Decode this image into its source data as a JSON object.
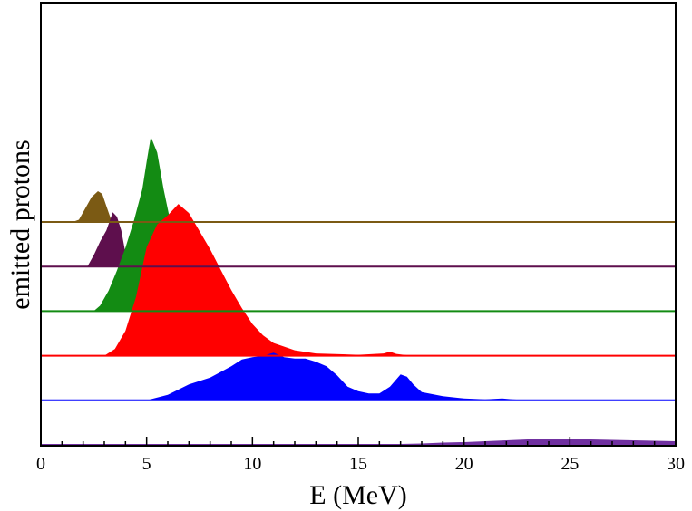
{
  "chart_data": {
    "type": "area",
    "xlabel": "E (MeV)",
    "ylabel": "emitted protons",
    "xlim": [
      0,
      30
    ],
    "x_ticks": [
      0,
      5,
      10,
      15,
      20,
      25,
      30
    ],
    "x_tick_labels": [
      "0",
      "5",
      "10",
      "15",
      "20",
      "25",
      "30"
    ],
    "grid": false,
    "legend": "none",
    "series": [
      {
        "color": "#7b5a14",
        "baseline_level": 5,
        "points": [
          [
            0,
            0
          ],
          [
            1.5,
            0
          ],
          [
            1.8,
            0.05
          ],
          [
            2.1,
            0.3
          ],
          [
            2.4,
            0.55
          ],
          [
            2.7,
            0.68
          ],
          [
            2.9,
            0.62
          ],
          [
            3.1,
            0.35
          ],
          [
            3.3,
            0.08
          ],
          [
            3.5,
            0
          ],
          [
            30,
            0
          ]
        ]
      },
      {
        "color": "#5e0f4d",
        "baseline_level": 4,
        "points": [
          [
            0,
            0
          ],
          [
            2.2,
            0
          ],
          [
            2.5,
            0.25
          ],
          [
            2.8,
            0.55
          ],
          [
            3.1,
            0.8
          ],
          [
            3.4,
            1.2
          ],
          [
            3.6,
            1.1
          ],
          [
            3.8,
            0.8
          ],
          [
            4.0,
            0.3
          ],
          [
            4.2,
            0.05
          ],
          [
            4.4,
            0
          ],
          [
            30,
            0
          ]
        ]
      },
      {
        "color": "#138b13",
        "baseline_level": 3,
        "points": [
          [
            0,
            0
          ],
          [
            2.5,
            0
          ],
          [
            2.8,
            0.12
          ],
          [
            3.2,
            0.45
          ],
          [
            3.6,
            0.9
          ],
          [
            4.0,
            1.4
          ],
          [
            4.4,
            2.0
          ],
          [
            4.8,
            2.7
          ],
          [
            5.0,
            3.3
          ],
          [
            5.2,
            3.85
          ],
          [
            5.5,
            3.5
          ],
          [
            5.8,
            2.7
          ],
          [
            6.2,
            1.8
          ],
          [
            6.6,
            0.8
          ],
          [
            7.0,
            0.2
          ],
          [
            7.4,
            0
          ],
          [
            30,
            0
          ]
        ]
      },
      {
        "color": "#ff0000",
        "baseline_level": 2,
        "points": [
          [
            0,
            0
          ],
          [
            3.0,
            0
          ],
          [
            3.5,
            0.15
          ],
          [
            4.0,
            0.55
          ],
          [
            4.5,
            1.3
          ],
          [
            5.0,
            2.4
          ],
          [
            5.5,
            2.9
          ],
          [
            6.0,
            3.1
          ],
          [
            6.5,
            3.35
          ],
          [
            7.0,
            3.15
          ],
          [
            7.5,
            2.75
          ],
          [
            8.0,
            2.35
          ],
          [
            8.5,
            1.9
          ],
          [
            9.0,
            1.45
          ],
          [
            9.5,
            1.05
          ],
          [
            10,
            0.7
          ],
          [
            10.5,
            0.45
          ],
          [
            11,
            0.28
          ],
          [
            12,
            0.12
          ],
          [
            13,
            0.05
          ],
          [
            15,
            0.02
          ],
          [
            16.2,
            0.05
          ],
          [
            16.5,
            0.09
          ],
          [
            16.8,
            0.04
          ],
          [
            17.5,
            0
          ],
          [
            30,
            0
          ]
        ]
      },
      {
        "color": "#0000ff",
        "baseline_level": 1,
        "points": [
          [
            0,
            0
          ],
          [
            5.0,
            0
          ],
          [
            6.0,
            0.12
          ],
          [
            7.0,
            0.35
          ],
          [
            8.0,
            0.5
          ],
          [
            9.0,
            0.75
          ],
          [
            9.5,
            0.9
          ],
          [
            10,
            0.95
          ],
          [
            10.5,
            0.98
          ],
          [
            11,
            1.05
          ],
          [
            11.5,
            0.95
          ],
          [
            12,
            0.92
          ],
          [
            12.5,
            0.92
          ],
          [
            13,
            0.85
          ],
          [
            13.5,
            0.75
          ],
          [
            14,
            0.55
          ],
          [
            14.5,
            0.3
          ],
          [
            15,
            0.2
          ],
          [
            15.5,
            0.15
          ],
          [
            16,
            0.15
          ],
          [
            16.5,
            0.3
          ],
          [
            17,
            0.57
          ],
          [
            17.3,
            0.52
          ],
          [
            17.6,
            0.35
          ],
          [
            18,
            0.18
          ],
          [
            19,
            0.09
          ],
          [
            20,
            0.04
          ],
          [
            21,
            0.02
          ],
          [
            21.8,
            0.04
          ],
          [
            22.3,
            0.02
          ],
          [
            23,
            0
          ],
          [
            30,
            0
          ]
        ]
      },
      {
        "color": "#7030a0",
        "baseline_level": 0,
        "points": [
          [
            0,
            0
          ],
          [
            15.5,
            0
          ],
          [
            17,
            0.02
          ],
          [
            18,
            0.03
          ],
          [
            19,
            0.05
          ],
          [
            20,
            0.06
          ],
          [
            21,
            0.08
          ],
          [
            22,
            0.1
          ],
          [
            23,
            0.12
          ],
          [
            24,
            0.12
          ],
          [
            25,
            0.12
          ],
          [
            26,
            0.12
          ],
          [
            27,
            0.11
          ],
          [
            28,
            0.1
          ],
          [
            29,
            0.09
          ],
          [
            30,
            0.08
          ]
        ]
      }
    ]
  }
}
